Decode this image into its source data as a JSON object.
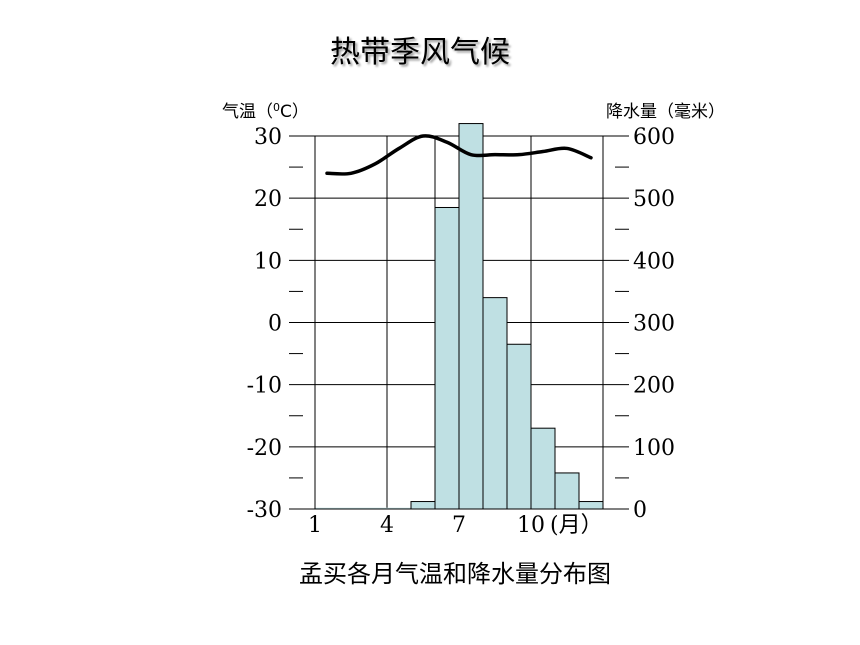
{
  "chart_data": {
    "type": "bar",
    "title": "热带季风气候",
    "caption": "孟买各月气温和降水量分布图",
    "left_axis": {
      "label": "气温（",
      "label_sup": "0",
      "label_tail": "C）",
      "ylim": [
        -30,
        30
      ],
      "ticks": [
        30,
        20,
        10,
        0,
        -10,
        -20,
        -30
      ]
    },
    "right_axis": {
      "label": "降水量（毫米）",
      "ylim": [
        0,
        600
      ],
      "ticks": [
        600,
        500,
        400,
        300,
        200,
        100,
        0
      ]
    },
    "x_axis": {
      "tick_labels": [
        "1",
        "4",
        "7",
        "10"
      ],
      "tick_months": [
        1,
        4,
        7,
        10
      ],
      "unit": "(月）"
    },
    "months": [
      1,
      2,
      3,
      4,
      5,
      6,
      7,
      8,
      9,
      10,
      11,
      12
    ],
    "series": [
      {
        "kind": "bar",
        "axis": "right",
        "values": [
          2,
          2,
          2,
          2,
          12,
          485,
          620,
          340,
          265,
          130,
          58,
          12
        ],
        "color": "#bfe0e3"
      },
      {
        "kind": "line",
        "axis": "left",
        "values": [
          24,
          24,
          25.5,
          28,
          30,
          29,
          27,
          27,
          27,
          27.5,
          28,
          26.5
        ],
        "color": "#000000"
      }
    ],
    "grid": true
  }
}
